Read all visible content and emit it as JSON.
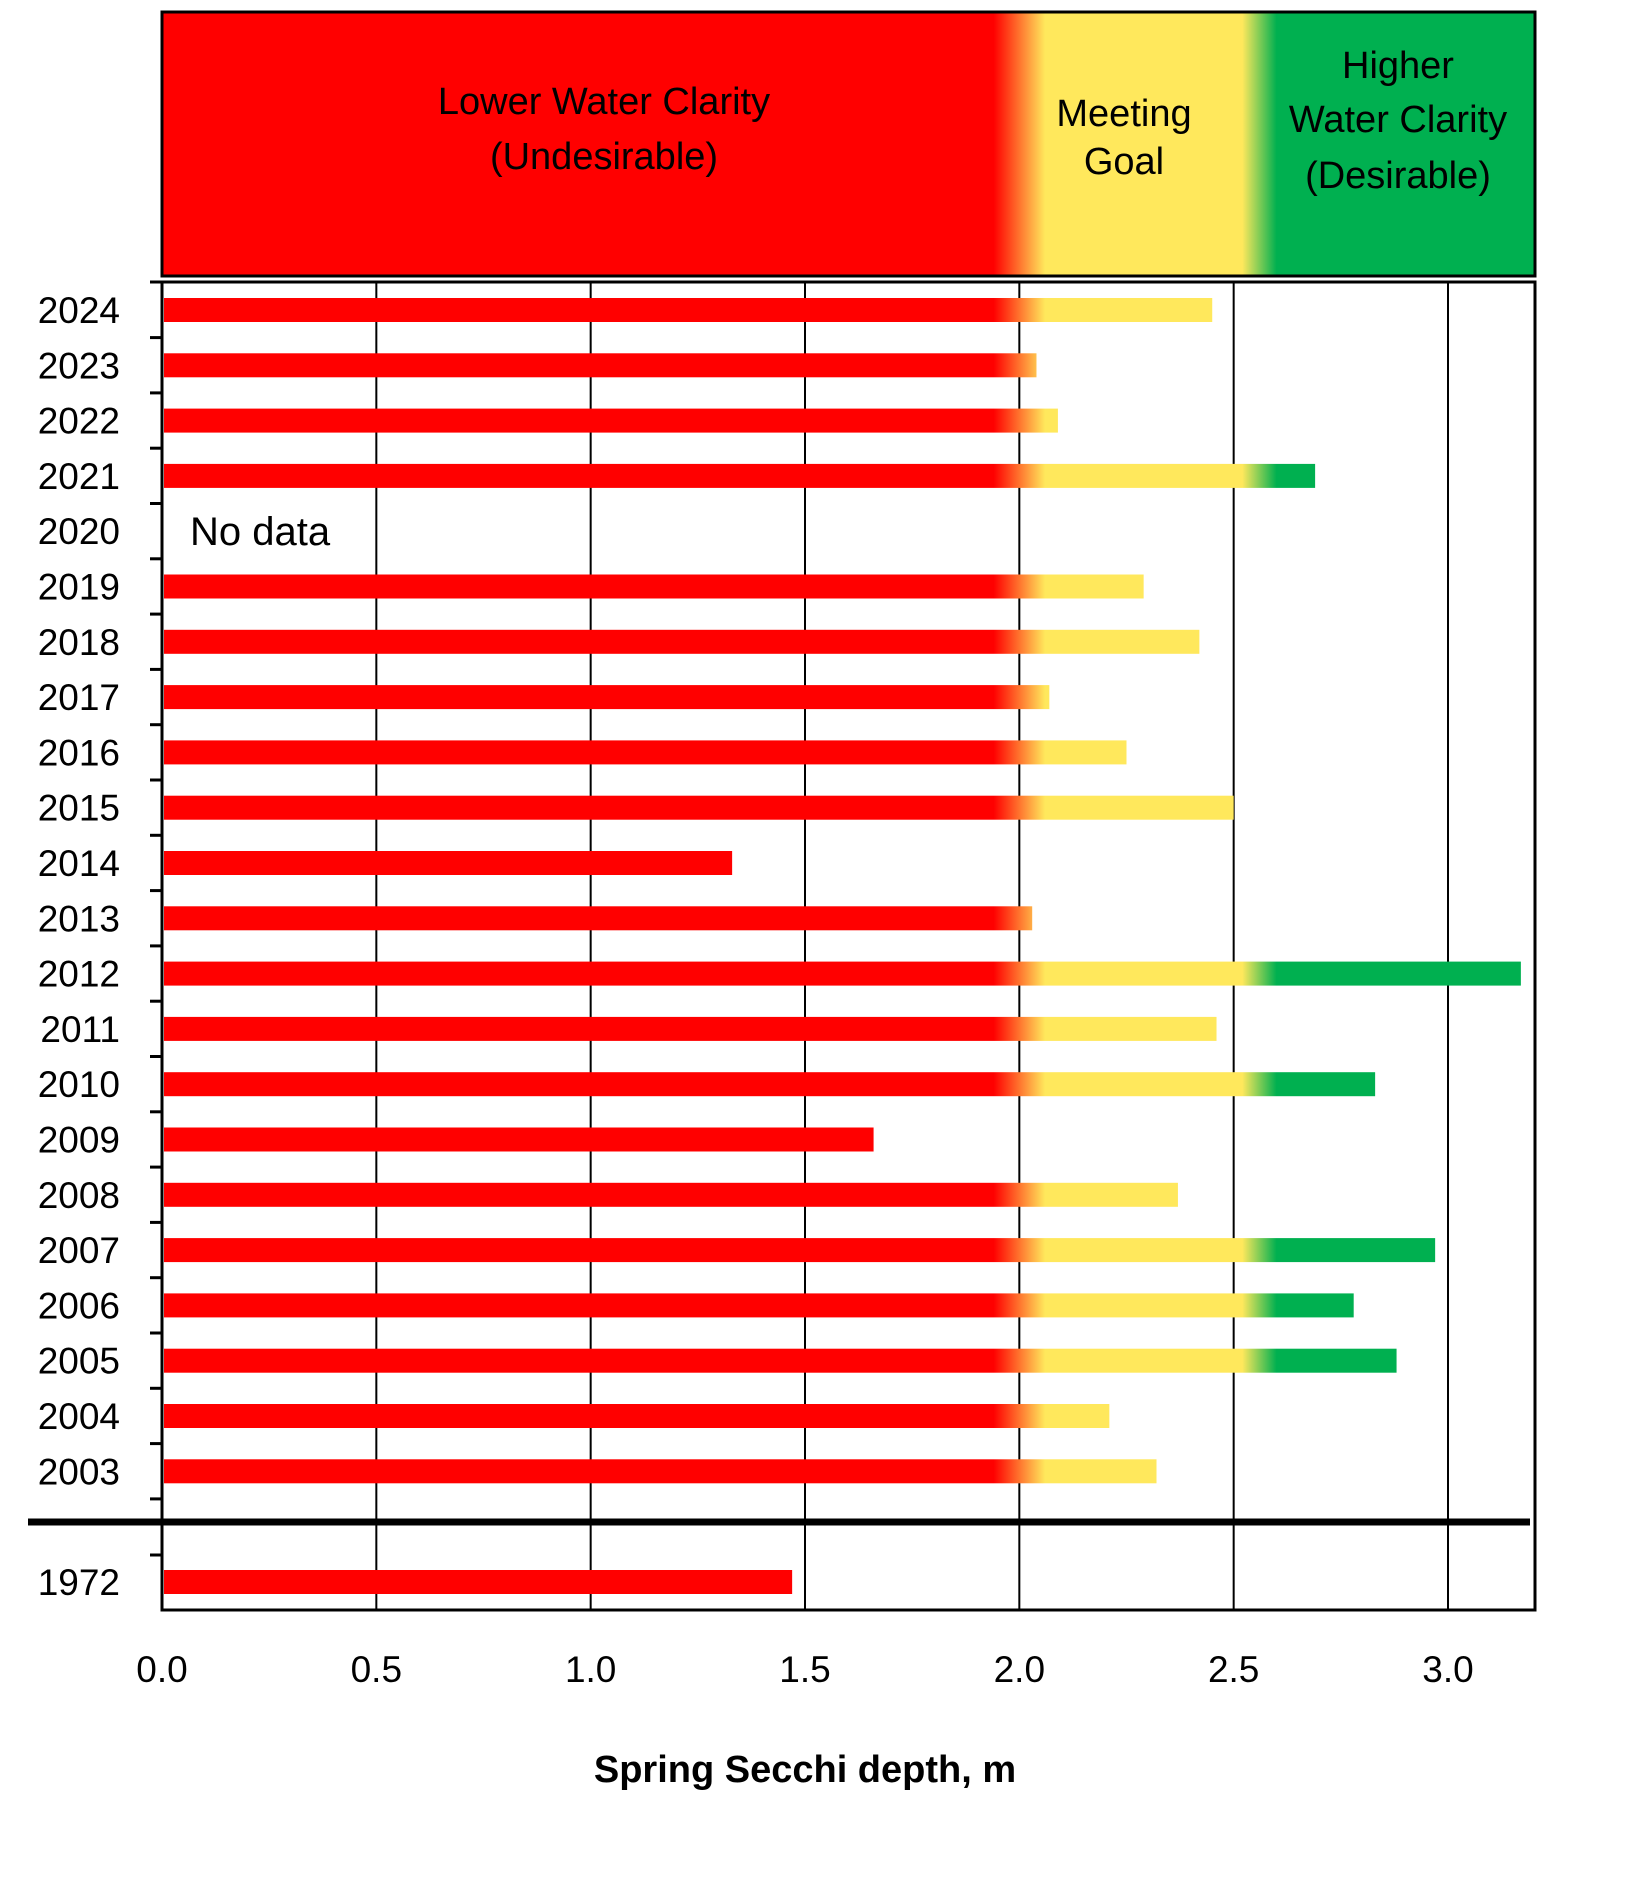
{
  "chart_data": {
    "type": "bar",
    "orientation": "horizontal",
    "xlabel": "Spring Secchi depth, m",
    "ylabel": "",
    "xlim": [
      0,
      3.2
    ],
    "xticks": [
      "0.0",
      "0.5",
      "1.0",
      "1.5",
      "2.0",
      "2.5",
      "3.0"
    ],
    "grid": "vertical",
    "categories": [
      "2024",
      "2023",
      "2022",
      "2021",
      "2020",
      "2019",
      "2018",
      "2017",
      "2016",
      "2015",
      "2014",
      "2013",
      "2012",
      "2011",
      "2010",
      "2009",
      "2008",
      "2007",
      "2006",
      "2005",
      "2004",
      "2003",
      "1972"
    ],
    "values": [
      2.45,
      2.04,
      2.09,
      2.69,
      null,
      2.29,
      2.42,
      2.07,
      2.25,
      2.5,
      1.33,
      2.03,
      3.17,
      2.46,
      2.83,
      1.66,
      2.37,
      2.97,
      2.78,
      2.88,
      2.21,
      2.32,
      1.47
    ],
    "annotations": [
      {
        "category": "2020",
        "text": "No data"
      }
    ],
    "zones": [
      {
        "label_lines": [
          "Lower Water Clarity",
          "(Undesirable)"
        ],
        "range": [
          0,
          2.0
        ],
        "color": "#ff0000"
      },
      {
        "label_lines": [
          "Meeting",
          "Goal"
        ],
        "range": [
          2.0,
          2.5
        ],
        "color": "#ffe85c"
      },
      {
        "label_lines": [
          "Higher",
          "Water Clarity",
          "(Desirable)"
        ],
        "range": [
          2.5,
          3.2
        ],
        "color": "#00b050"
      }
    ]
  }
}
